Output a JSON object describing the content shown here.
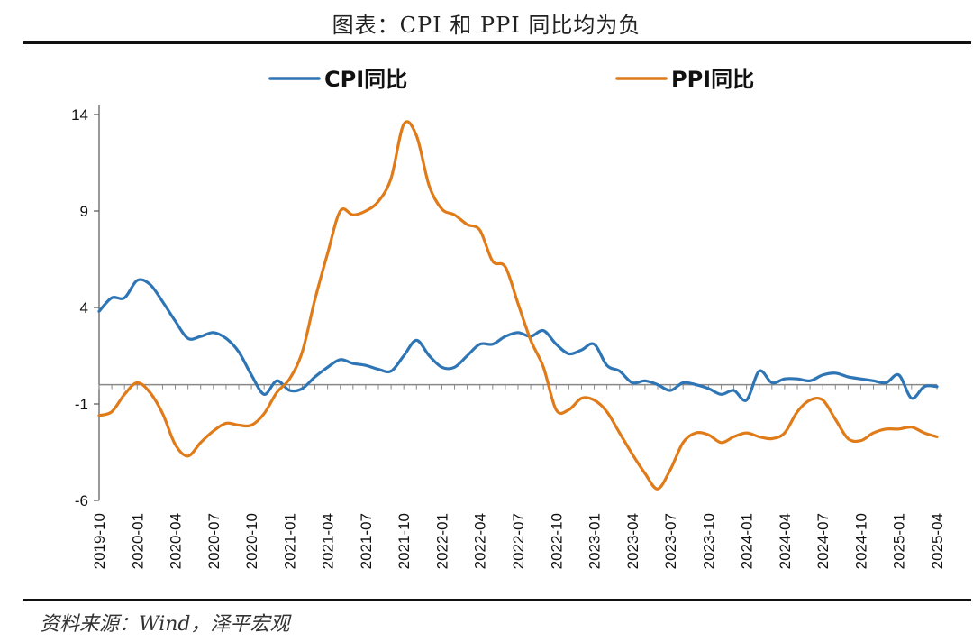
{
  "header": {
    "title": "图表：CPI 和 PPI 同比均为负"
  },
  "footer": {
    "source": "资料来源：Wind，泽平宏观"
  },
  "chart_data": {
    "type": "line",
    "title": "图表：CPI 和 PPI 同比均为负",
    "xlabel": "",
    "ylabel": "",
    "ylim": [
      -6,
      14
    ],
    "yticks": [
      14,
      9,
      4,
      -1,
      -6
    ],
    "grid": false,
    "legend": "top",
    "x_tick_labels": [
      "2019-10",
      "2020-01",
      "2020-04",
      "2020-07",
      "2020-10",
      "2021-01",
      "2021-04",
      "2021-07",
      "2021-10",
      "2022-01",
      "2022-04",
      "2022-07",
      "2022-10",
      "2023-01",
      "2023-04",
      "2023-07",
      "2023-10",
      "2024-01",
      "2024-04",
      "2024-07",
      "2024-10",
      "2025-01",
      "2025-04"
    ],
    "x": [
      "2019-10",
      "2019-11",
      "2019-12",
      "2020-01",
      "2020-02",
      "2020-03",
      "2020-04",
      "2020-05",
      "2020-06",
      "2020-07",
      "2020-08",
      "2020-09",
      "2020-10",
      "2020-11",
      "2020-12",
      "2021-01",
      "2021-02",
      "2021-03",
      "2021-04",
      "2021-05",
      "2021-06",
      "2021-07",
      "2021-08",
      "2021-09",
      "2021-10",
      "2021-11",
      "2021-12",
      "2022-01",
      "2022-02",
      "2022-03",
      "2022-04",
      "2022-05",
      "2022-06",
      "2022-07",
      "2022-08",
      "2022-09",
      "2022-10",
      "2022-11",
      "2022-12",
      "2023-01",
      "2023-02",
      "2023-03",
      "2023-04",
      "2023-05",
      "2023-06",
      "2023-07",
      "2023-08",
      "2023-09",
      "2023-10",
      "2023-11",
      "2023-12",
      "2024-01",
      "2024-02",
      "2024-03",
      "2024-04",
      "2024-05",
      "2024-06",
      "2024-07",
      "2024-08",
      "2024-09",
      "2024-10",
      "2024-11",
      "2024-12",
      "2025-01",
      "2025-02",
      "2025-03",
      "2025-04"
    ],
    "series": [
      {
        "name": "CPI同比",
        "color": "#2e75b6",
        "values": [
          3.8,
          4.5,
          4.5,
          5.4,
          5.2,
          4.3,
          3.3,
          2.4,
          2.5,
          2.7,
          2.4,
          1.7,
          0.5,
          -0.5,
          0.2,
          -0.3,
          -0.2,
          0.4,
          0.9,
          1.3,
          1.1,
          1.0,
          0.8,
          0.7,
          1.5,
          2.3,
          1.5,
          0.9,
          0.9,
          1.5,
          2.1,
          2.1,
          2.5,
          2.7,
          2.5,
          2.8,
          2.1,
          1.6,
          1.8,
          2.1,
          1.0,
          0.7,
          0.1,
          0.2,
          0.0,
          -0.3,
          0.1,
          0.0,
          -0.2,
          -0.5,
          -0.3,
          -0.8,
          0.7,
          0.1,
          0.3,
          0.3,
          0.2,
          0.5,
          0.6,
          0.4,
          0.3,
          0.2,
          0.1,
          0.5,
          -0.7,
          -0.1,
          -0.1
        ]
      },
      {
        "name": "PPI同比",
        "color": "#e07b1a",
        "values": [
          -1.6,
          -1.4,
          -0.5,
          0.1,
          -0.4,
          -1.5,
          -3.1,
          -3.7,
          -3.0,
          -2.4,
          -2.0,
          -2.1,
          -2.1,
          -1.5,
          -0.4,
          0.3,
          1.7,
          4.4,
          6.8,
          9.0,
          8.8,
          9.0,
          9.5,
          10.7,
          13.5,
          12.9,
          10.3,
          9.1,
          8.8,
          8.3,
          8.0,
          6.4,
          6.1,
          4.2,
          2.3,
          0.9,
          -1.3,
          -1.3,
          -0.7,
          -0.8,
          -1.4,
          -2.5,
          -3.6,
          -4.6,
          -5.4,
          -4.4,
          -3.0,
          -2.5,
          -2.6,
          -3.0,
          -2.7,
          -2.5,
          -2.7,
          -2.8,
          -2.5,
          -1.4,
          -0.8,
          -0.8,
          -1.8,
          -2.8,
          -2.9,
          -2.5,
          -2.3,
          -2.3,
          -2.2,
          -2.5,
          -2.7
        ]
      }
    ]
  }
}
